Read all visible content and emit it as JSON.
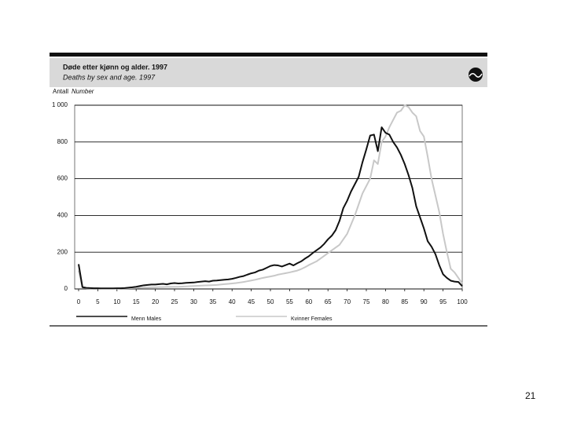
{
  "chart_data": {
    "type": "line",
    "title": "Døde etter kjønn og alder. 1997",
    "subtitle": "Deaths by sex and age. 1997",
    "y_label": "Antall",
    "y_label_en": "Number",
    "x": [
      0,
      1,
      2,
      3,
      4,
      5,
      6,
      7,
      8,
      9,
      10,
      11,
      12,
      13,
      14,
      15,
      16,
      17,
      18,
      19,
      20,
      21,
      22,
      23,
      24,
      25,
      26,
      27,
      28,
      29,
      30,
      31,
      32,
      33,
      34,
      35,
      36,
      37,
      38,
      39,
      40,
      41,
      42,
      43,
      44,
      45,
      46,
      47,
      48,
      49,
      50,
      51,
      52,
      53,
      54,
      55,
      56,
      57,
      58,
      59,
      60,
      61,
      62,
      63,
      64,
      65,
      66,
      67,
      68,
      69,
      70,
      71,
      72,
      73,
      74,
      75,
      76,
      77,
      78,
      79,
      80,
      81,
      82,
      83,
      84,
      85,
      86,
      87,
      88,
      89,
      90,
      91,
      92,
      93,
      94,
      95,
      96,
      97,
      98,
      99,
      100
    ],
    "series": [
      {
        "name": "Kvinner Females",
        "color": "#c8c8c8",
        "values": [
          100,
          8,
          4,
          3,
          3,
          3,
          2,
          2,
          2,
          2,
          2,
          3,
          3,
          4,
          5,
          6,
          7,
          8,
          8,
          9,
          9,
          10,
          10,
          11,
          11,
          12,
          12,
          13,
          14,
          15,
          16,
          17,
          18,
          19,
          20,
          21,
          22,
          24,
          26,
          28,
          30,
          32,
          35,
          38,
          42,
          46,
          50,
          55,
          60,
          64,
          68,
          72,
          78,
          82,
          86,
          90,
          95,
          100,
          108,
          118,
          130,
          140,
          150,
          165,
          180,
          195,
          210,
          225,
          240,
          270,
          300,
          350,
          400,
          460,
          520,
          560,
          600,
          700,
          680,
          800,
          830,
          880,
          920,
          960,
          970,
          1000,
          990,
          960,
          940,
          860,
          830,
          720,
          600,
          510,
          420,
          300,
          200,
          110,
          90,
          60,
          30
        ]
      },
      {
        "name": "Menn Males",
        "color": "#111111",
        "values": [
          135,
          10,
          6,
          5,
          4,
          4,
          3,
          3,
          3,
          3,
          4,
          4,
          5,
          7,
          9,
          12,
          16,
          20,
          22,
          24,
          24,
          26,
          28,
          25,
          30,
          32,
          30,
          31,
          33,
          34,
          35,
          38,
          40,
          42,
          40,
          45,
          46,
          48,
          50,
          52,
          55,
          60,
          66,
          70,
          78,
          85,
          90,
          100,
          105,
          115,
          125,
          130,
          128,
          122,
          130,
          138,
          128,
          140,
          150,
          165,
          178,
          195,
          210,
          225,
          245,
          270,
          290,
          320,
          370,
          440,
          480,
          530,
          570,
          610,
          690,
          760,
          835,
          840,
          750,
          880,
          850,
          840,
          800,
          770,
          730,
          680,
          620,
          550,
          450,
          390,
          330,
          260,
          230,
          190,
          130,
          80,
          60,
          45,
          40,
          38,
          15
        ]
      }
    ],
    "xlim": [
      0,
      100
    ],
    "xticks": [
      0,
      5,
      10,
      15,
      20,
      25,
      30,
      35,
      40,
      45,
      50,
      55,
      60,
      65,
      70,
      75,
      80,
      85,
      90,
      95,
      100
    ],
    "ylim": [
      0,
      1000
    ],
    "yticks": [
      0,
      200,
      400,
      600,
      800,
      {
        "value": 1000,
        "label": "1 000"
      }
    ],
    "grid": true,
    "page_number": "21"
  }
}
